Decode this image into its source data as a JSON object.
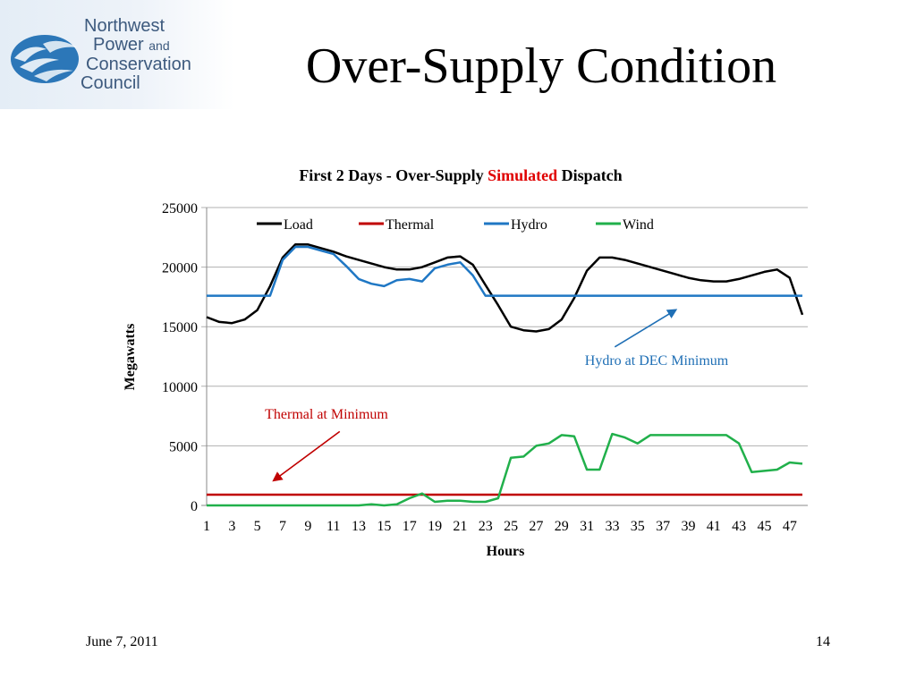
{
  "logo": {
    "line1": "Northwest",
    "line2": "Power",
    "line2_small": "and",
    "line3": "Conservation",
    "line4": "Council"
  },
  "slide": {
    "title": "Over-Supply Condition",
    "date": "June 7, 2011",
    "page_number": "14"
  },
  "chart_data": {
    "type": "line",
    "title_parts": [
      "First 2 Days - Over-Supply ",
      "Simulated",
      " Dispatch"
    ],
    "title_highlight_color": "#e00000",
    "xlabel": "Hours",
    "ylabel": "Megawatts",
    "ylim": [
      0,
      25000
    ],
    "yticks": [
      0,
      5000,
      10000,
      15000,
      20000,
      25000
    ],
    "x": [
      1,
      2,
      3,
      4,
      5,
      6,
      7,
      8,
      9,
      10,
      11,
      12,
      13,
      14,
      15,
      16,
      17,
      18,
      19,
      20,
      21,
      22,
      23,
      24,
      25,
      26,
      27,
      28,
      29,
      30,
      31,
      32,
      33,
      34,
      35,
      36,
      37,
      38,
      39,
      40,
      41,
      42,
      43,
      44,
      45,
      46,
      47,
      48
    ],
    "xtick_labels": [
      "1",
      "3",
      "5",
      "7",
      "9",
      "11",
      "13",
      "15",
      "17",
      "19",
      "21",
      "23",
      "25",
      "27",
      "29",
      "31",
      "33",
      "35",
      "37",
      "39",
      "41",
      "43",
      "45",
      "47"
    ],
    "grid": "horizontal",
    "legend_position": "top",
    "series": [
      {
        "name": "Load",
        "color": "#000000",
        "values": [
          15800,
          15400,
          15300,
          15600,
          16400,
          18400,
          20800,
          21900,
          21900,
          21600,
          21300,
          20900,
          20600,
          20300,
          20000,
          19800,
          19800,
          20000,
          20400,
          20800,
          20900,
          20200,
          18500,
          16800,
          15000,
          14700,
          14600,
          14800,
          15600,
          17400,
          19700,
          20800,
          20800,
          20600,
          20300,
          20000,
          19700,
          19400,
          19100,
          18900,
          18800,
          18800,
          19000,
          19300,
          19600,
          19800,
          19100,
          16000
        ]
      },
      {
        "name": "Thermal",
        "color": "#c00000",
        "values": [
          900,
          900,
          900,
          900,
          900,
          900,
          900,
          900,
          900,
          900,
          900,
          900,
          900,
          900,
          900,
          900,
          900,
          900,
          900,
          900,
          900,
          900,
          900,
          900,
          900,
          900,
          900,
          900,
          900,
          900,
          900,
          900,
          900,
          900,
          900,
          900,
          900,
          900,
          900,
          900,
          900,
          900,
          900,
          900,
          900,
          900,
          900,
          900
        ]
      },
      {
        "name": "Hydro",
        "color": "#1f77c4",
        "values": [
          17600,
          17600,
          17600,
          17600,
          17600,
          17600,
          20600,
          21700,
          21700,
          21400,
          21100,
          20100,
          19000,
          18600,
          18400,
          18900,
          19000,
          18800,
          19900,
          20200,
          20400,
          19300,
          17600,
          17600,
          17600,
          17600,
          17600,
          17600,
          17600,
          17600,
          17600,
          17600,
          17600,
          17600,
          17600,
          17600,
          17600,
          17600,
          17600,
          17600,
          17600,
          17600,
          17600,
          17600,
          17600,
          17600,
          17600,
          17600
        ]
      },
      {
        "name": "Wind",
        "color": "#21b04b",
        "values": [
          0,
          0,
          0,
          0,
          0,
          0,
          0,
          0,
          0,
          0,
          0,
          0,
          0,
          100,
          0,
          100,
          600,
          1000,
          300,
          400,
          400,
          300,
          300,
          600,
          4000,
          4100,
          5000,
          5200,
          5900,
          5800,
          3000,
          3000,
          6000,
          5700,
          5200,
          5900,
          5900,
          5900,
          5900,
          5900,
          5900,
          5900,
          5200,
          2800,
          2900,
          3000,
          3600,
          3500
        ]
      }
    ],
    "annotations": [
      {
        "text": "Thermal at Minimum",
        "color": "#c00000",
        "arrow_tail": [
          11.5,
          6200
        ],
        "arrow_head": [
          6.3,
          2100
        ]
      },
      {
        "text": "Hydro at DEC Minimum",
        "color": "#1f6fb5",
        "arrow_tail": [
          33.2,
          13300
        ],
        "arrow_head": [
          38.0,
          16400
        ]
      }
    ]
  },
  "colors": {
    "logo_text": "#3d5a7e",
    "logo_fish": "#2c77b8",
    "grid": "#b0b0b0",
    "axis": "#888888"
  }
}
